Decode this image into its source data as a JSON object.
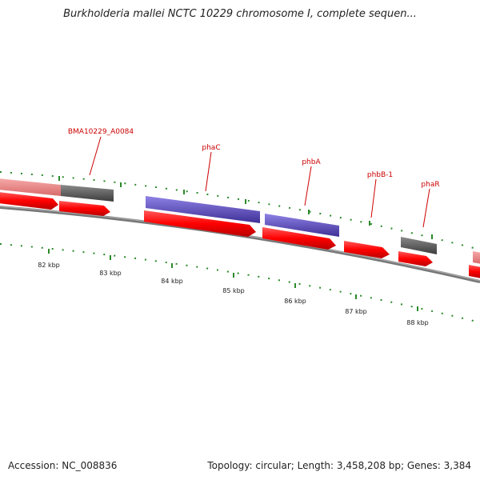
{
  "title": "Burkholderia mallei NCTC 10229 chromosome I, complete sequen...",
  "footer": {
    "accession": "Accession: NC_008836",
    "stats": "Topology: circular; Length: 3,458,208 bp; Genes: 3,384"
  },
  "colors": {
    "cds": "#ff0000",
    "pseudo_light": "#ef8a8a",
    "grey_feature": "#666666",
    "blue_feature": "#6a5acd",
    "backbone": "#8a8a8a",
    "tick": "#2a8a2a",
    "label": "#cc0000"
  },
  "gene_labels": [
    {
      "name": "BMA10229_A0084"
    },
    {
      "name": "phaC"
    },
    {
      "name": "phbA"
    },
    {
      "name": "phbB-1"
    },
    {
      "name": "phaR"
    }
  ],
  "scale_ticks": [
    {
      "label": "82 kbp"
    },
    {
      "label": "83 kbp"
    },
    {
      "label": "84 kbp"
    },
    {
      "label": "85 kbp"
    },
    {
      "label": "86 kbp"
    },
    {
      "label": "87 kbp"
    },
    {
      "label": "88 kbp"
    }
  ]
}
